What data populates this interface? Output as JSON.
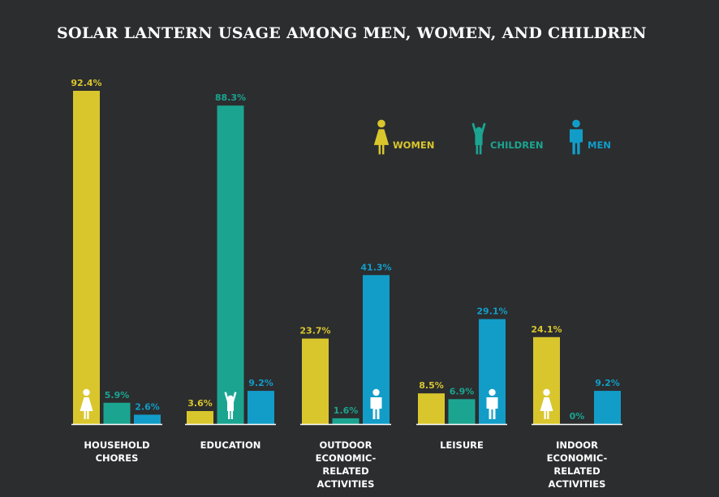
{
  "chart_data": {
    "type": "bar",
    "title": "SOLAR LANTERN USAGE AMONG MEN, WOMEN, AND CHILDREN",
    "xlabel": "",
    "ylabel": "",
    "ylim": [
      0,
      100
    ],
    "categories": [
      [
        "HOUSEHOLD",
        "CHORES"
      ],
      [
        "EDUCATION"
      ],
      [
        "OUTDOOR",
        "ECONOMIC-",
        "RELATED",
        "ACTIVITIES"
      ],
      [
        "LEISURE"
      ],
      [
        "INDOOR",
        "ECONOMIC-",
        "RELATED",
        "ACTIVITIES"
      ]
    ],
    "series": [
      {
        "name": "WOMEN",
        "color": "#d9c62d",
        "icon": "woman-icon",
        "values": [
          92.4,
          3.6,
          23.7,
          8.5,
          24.1
        ],
        "labels": [
          "92.4%",
          "3.6%",
          "23.7%",
          "8.5%",
          "24.1%"
        ]
      },
      {
        "name": "CHILDREN",
        "color": "#1ba591",
        "icon": "child-icon",
        "values": [
          5.9,
          88.3,
          1.6,
          6.9,
          0
        ],
        "labels": [
          "5.9%",
          "88.3%",
          "1.6%",
          "6.9%",
          "0%"
        ]
      },
      {
        "name": "MEN",
        "color": "#129dc8",
        "icon": "man-icon",
        "values": [
          2.6,
          9.2,
          41.3,
          29.1,
          9.2
        ],
        "labels": [
          "2.6%",
          "9.2%",
          "41.3%",
          "29.1%",
          "9.2%"
        ]
      }
    ],
    "bar_icons": [
      "woman-icon",
      "child-icon",
      "man-icon",
      "man-icon",
      "woman-icon"
    ],
    "legend_position": "top-right",
    "grid": false
  }
}
